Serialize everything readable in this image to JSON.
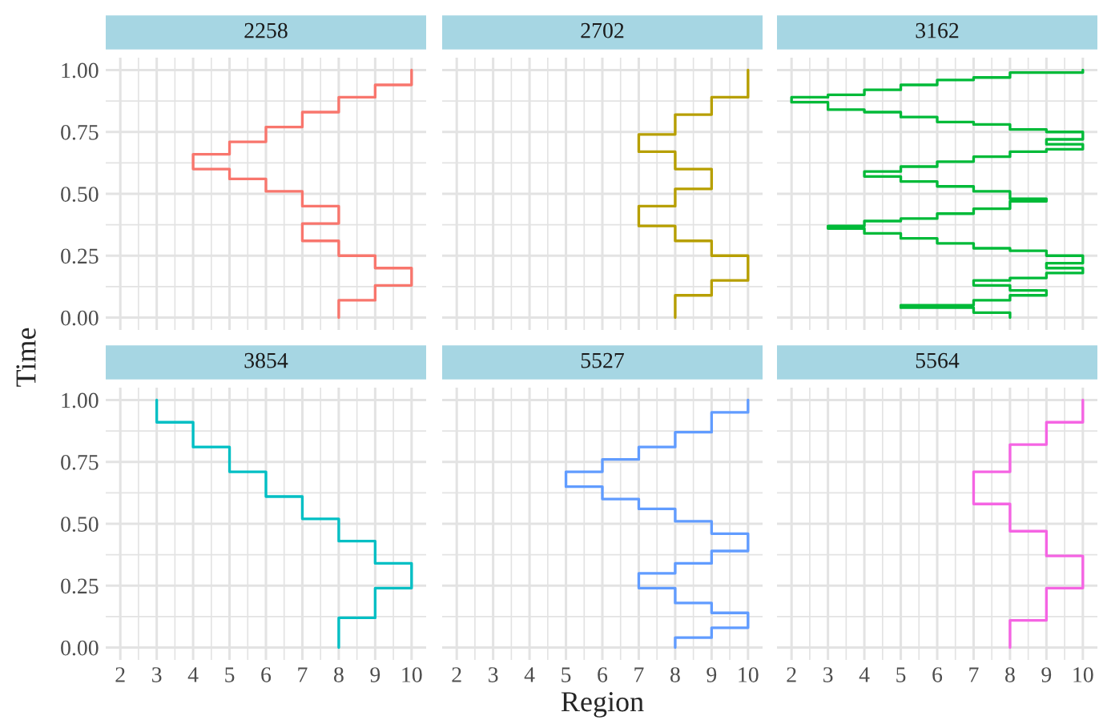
{
  "chart_data": [
    {
      "type": "step",
      "title": "2258",
      "ylabel": "Time",
      "color": "#f8766d",
      "tick_labels": "y",
      "grid": true,
      "xlim": [
        1.6,
        10.4
      ],
      "ylim": [
        -0.05,
        1.05
      ],
      "xticks": [
        2,
        3,
        4,
        5,
        6,
        7,
        8,
        9,
        10
      ],
      "yticks": [
        {
          "value": 0,
          "label": "0.00"
        },
        {
          "value": 0.25,
          "label": "0.25"
        },
        {
          "value": 0.5,
          "label": "0.50"
        },
        {
          "value": 0.75,
          "label": "0.75"
        },
        {
          "value": 1,
          "label": "1.00"
        }
      ],
      "x": [
        8,
        9,
        10,
        9,
        8,
        7,
        8,
        7,
        6,
        5,
        4,
        5,
        6,
        7,
        8,
        9,
        10,
        10
      ],
      "values": [
        0,
        0.07,
        0.13,
        0.2,
        0.25,
        0.31,
        0.38,
        0.45,
        0.51,
        0.56,
        0.6,
        0.66,
        0.71,
        0.77,
        0.83,
        0.89,
        0.94,
        1.0
      ]
    },
    {
      "type": "step",
      "title": "2702",
      "color": "#b79f00",
      "tick_labels": false,
      "grid": true,
      "xlim": [
        1.6,
        10.4
      ],
      "ylim": [
        -0.05,
        1.05
      ],
      "xticks": [
        2,
        3,
        4,
        5,
        6,
        7,
        8,
        9,
        10
      ],
      "yticks": [
        0,
        0.25,
        0.5,
        0.75,
        1
      ],
      "x": [
        8,
        9,
        10,
        9,
        8,
        7,
        8,
        9,
        8,
        7,
        8,
        9,
        10,
        10
      ],
      "values": [
        0,
        0.09,
        0.15,
        0.25,
        0.31,
        0.37,
        0.45,
        0.52,
        0.6,
        0.67,
        0.74,
        0.82,
        0.89,
        1.0
      ]
    },
    {
      "type": "step",
      "title": "3162",
      "color": "#00ba38",
      "tick_labels": false,
      "grid": true,
      "xlim": [
        1.6,
        10.4
      ],
      "ylim": [
        -0.05,
        1.05
      ],
      "xticks": [
        2,
        3,
        4,
        5,
        6,
        7,
        8,
        9,
        10
      ],
      "yticks": [
        0,
        0.25,
        0.5,
        0.75,
        1
      ],
      "x": [
        8,
        7,
        5,
        7,
        8,
        9,
        8,
        7,
        8,
        9,
        10,
        9,
        10,
        9,
        8,
        7,
        6,
        5,
        4,
        3,
        4,
        5,
        6,
        7,
        8,
        9,
        8,
        7,
        6,
        5,
        4,
        5,
        6,
        7,
        8,
        9,
        10,
        9,
        10,
        9,
        8,
        7,
        6,
        5,
        4,
        3,
        2,
        3,
        4,
        5,
        6,
        7,
        8,
        9,
        10,
        10
      ],
      "values": [
        0,
        0.02,
        0.04,
        0.05,
        0.07,
        0.09,
        0.11,
        0.13,
        0.15,
        0.16,
        0.18,
        0.2,
        0.22,
        0.25,
        0.27,
        0.28,
        0.3,
        0.32,
        0.34,
        0.36,
        0.37,
        0.39,
        0.4,
        0.42,
        0.44,
        0.47,
        0.48,
        0.51,
        0.53,
        0.55,
        0.57,
        0.59,
        0.61,
        0.63,
        0.65,
        0.67,
        0.68,
        0.7,
        0.72,
        0.75,
        0.76,
        0.78,
        0.79,
        0.81,
        0.83,
        0.84,
        0.87,
        0.89,
        0.9,
        0.92,
        0.94,
        0.96,
        0.97,
        0.99,
        0.99,
        1.0
      ]
    },
    {
      "type": "step",
      "title": "3854",
      "color": "#00bfc4",
      "grid": true,
      "xlim": [
        1.6,
        10.4
      ],
      "ylim": [
        -0.05,
        1.05
      ],
      "xticks": [
        2,
        3,
        4,
        5,
        6,
        7,
        8,
        9,
        10
      ],
      "yticks": [
        {
          "value": 0,
          "label": "0.00"
        },
        {
          "value": 0.25,
          "label": "0.25"
        },
        {
          "value": 0.5,
          "label": "0.50"
        },
        {
          "value": 0.75,
          "label": "0.75"
        },
        {
          "value": 1,
          "label": "1.00"
        }
      ],
      "x": [
        8,
        9,
        10,
        9,
        8,
        7,
        6,
        5,
        4,
        3,
        3
      ],
      "values": [
        0,
        0.12,
        0.24,
        0.34,
        0.43,
        0.52,
        0.61,
        0.71,
        0.81,
        0.91,
        1.0
      ]
    },
    {
      "type": "step",
      "title": "5527",
      "xlabel": "Region",
      "color": "#619cff",
      "tick_labels": "x",
      "grid": true,
      "xlim": [
        1.6,
        10.4
      ],
      "ylim": [
        -0.05,
        1.05
      ],
      "xticks": [
        2,
        3,
        4,
        5,
        6,
        7,
        8,
        9,
        10
      ],
      "yticks": [
        0,
        0.25,
        0.5,
        0.75,
        1
      ],
      "x": [
        8,
        9,
        10,
        9,
        8,
        7,
        8,
        9,
        10,
        9,
        8,
        7,
        6,
        5,
        6,
        7,
        8,
        9,
        10,
        10
      ],
      "values": [
        0,
        0.04,
        0.08,
        0.14,
        0.18,
        0.24,
        0.3,
        0.34,
        0.39,
        0.46,
        0.51,
        0.56,
        0.6,
        0.65,
        0.71,
        0.76,
        0.81,
        0.87,
        0.95,
        1.0
      ]
    },
    {
      "type": "step",
      "title": "5564",
      "color": "#f564e3",
      "tick_labels": "x",
      "grid": true,
      "xlim": [
        1.6,
        10.4
      ],
      "ylim": [
        -0.05,
        1.05
      ],
      "xticks": [
        2,
        3,
        4,
        5,
        6,
        7,
        8,
        9,
        10
      ],
      "yticks": [
        0,
        0.25,
        0.5,
        0.75,
        1
      ],
      "x": [
        8,
        9,
        10,
        9,
        8,
        7,
        8,
        9,
        10,
        10
      ],
      "values": [
        0,
        0.11,
        0.24,
        0.37,
        0.47,
        0.58,
        0.71,
        0.82,
        0.91,
        1.0
      ]
    }
  ]
}
